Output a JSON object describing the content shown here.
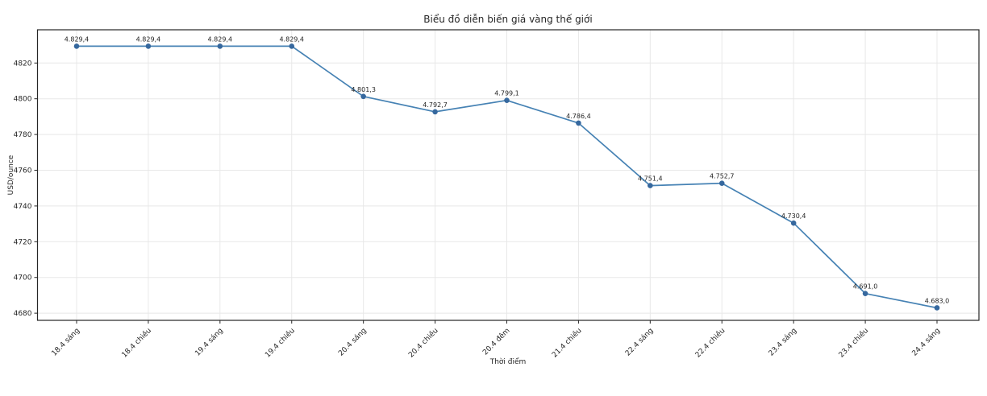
{
  "page": {
    "background_color": "#ffffff"
  },
  "chart_data": {
    "type": "line",
    "title": "Biểu đồ diễn biến giá vàng thế giới",
    "xlabel": "Thời điểm",
    "ylabel": "USD/ounce",
    "categories": [
      "18.4 sáng",
      "18.4 chiều",
      "19.4 sáng",
      "19.4 chiều",
      "20.4 sáng",
      "20.4 chiều",
      "20.4 đêm",
      "21.4 chiều",
      "22.4 sáng",
      "22.4 chiều",
      "23.4 sáng",
      "23.4 chiều",
      "24.4 sáng"
    ],
    "values": [
      4829.4,
      4829.4,
      4829.4,
      4829.4,
      4801.3,
      4792.7,
      4799.1,
      4786.4,
      4751.4,
      4752.7,
      4730.4,
      4691.0,
      4683.0
    ],
    "point_labels": [
      "4.829,4",
      "4.829,4",
      "4.829,4",
      "4.829,4",
      "4.801,3",
      "4.792,7",
      "4.799,1",
      "4.786,4",
      "4.751,4",
      "4.752,7",
      "4.730,4",
      "4.691,0",
      "4.683,0"
    ],
    "yticks": [
      4680,
      4700,
      4720,
      4740,
      4760,
      4780,
      4800,
      4820
    ],
    "ylim": [
      4676,
      4838.6
    ],
    "grid": true,
    "legend": "none",
    "xtick_rotation": 45,
    "line_color": "#4682b4",
    "marker_color": "#36689e",
    "grid_color": "#e8e8e8",
    "axis_color": "#262626",
    "text_color": "#262626"
  }
}
